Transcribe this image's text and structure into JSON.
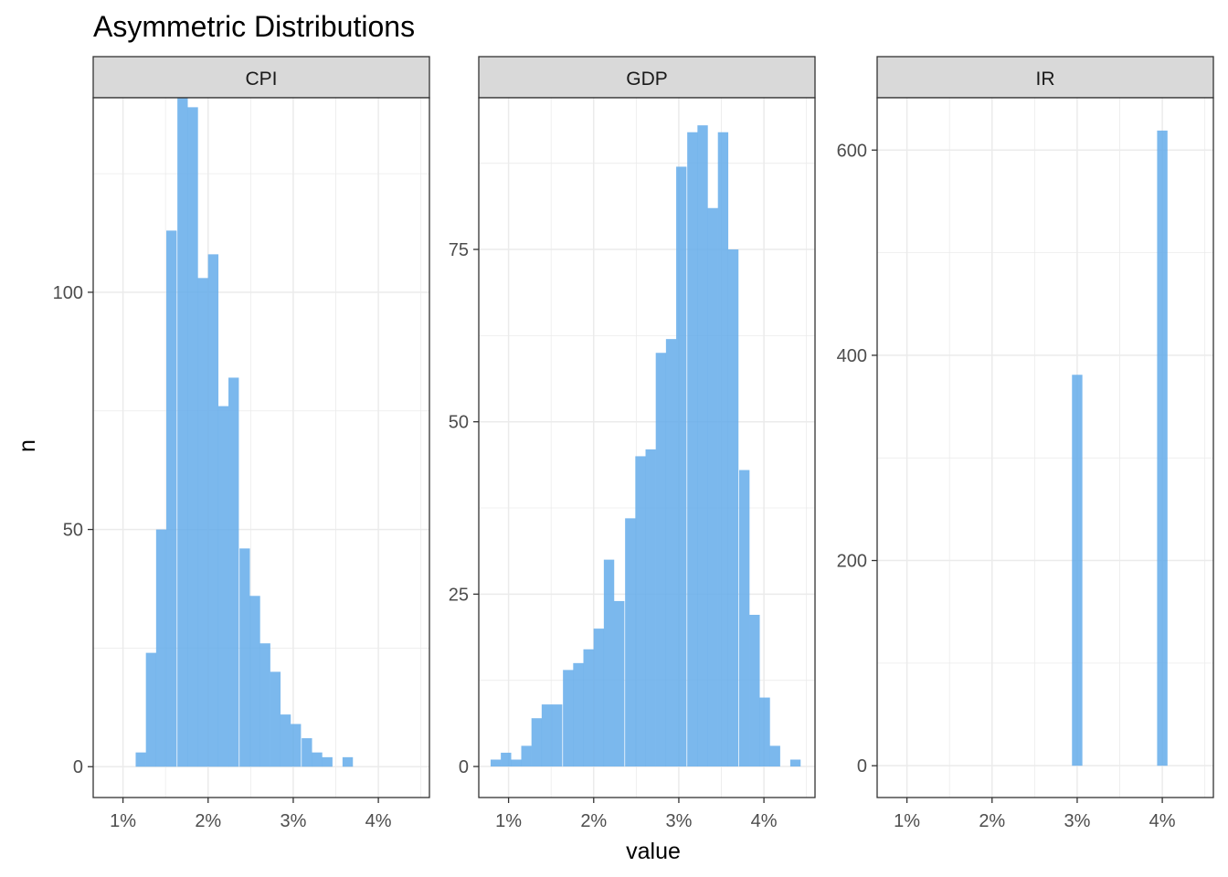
{
  "chart_data": {
    "type": "bar",
    "title": "Asymmetric Distributions",
    "xlabel": "value",
    "ylabel": "n",
    "bar_color": "#64ACEA",
    "grid": true,
    "facets": [
      {
        "label": "CPI",
        "xlim": [
          0.65,
          4.6
        ],
        "ylim": [
          -6.5,
          141
        ],
        "x_ticks": [
          1,
          2,
          3,
          4
        ],
        "x_tick_labels": [
          "1%",
          "2%",
          "3%",
          "4%"
        ],
        "y_ticks": [
          0,
          50,
          100
        ],
        "y_tick_labels": [
          "0",
          "50",
          "100"
        ],
        "bin_width": 0.122,
        "bars": [
          {
            "x": 1.21,
            "n": 3
          },
          {
            "x": 1.33,
            "n": 24
          },
          {
            "x": 1.45,
            "n": 50
          },
          {
            "x": 1.57,
            "n": 113
          },
          {
            "x": 1.7,
            "n": 141
          },
          {
            "x": 1.82,
            "n": 139
          },
          {
            "x": 1.94,
            "n": 103
          },
          {
            "x": 2.06,
            "n": 108
          },
          {
            "x": 2.18,
            "n": 76
          },
          {
            "x": 2.3,
            "n": 82
          },
          {
            "x": 2.43,
            "n": 46
          },
          {
            "x": 2.55,
            "n": 36
          },
          {
            "x": 2.67,
            "n": 26
          },
          {
            "x": 2.79,
            "n": 20
          },
          {
            "x": 2.91,
            "n": 11
          },
          {
            "x": 3.03,
            "n": 9
          },
          {
            "x": 3.16,
            "n": 6
          },
          {
            "x": 3.28,
            "n": 3
          },
          {
            "x": 3.4,
            "n": 2
          },
          {
            "x": 3.64,
            "n": 2
          }
        ]
      },
      {
        "label": "GDP",
        "xlim": [
          0.65,
          4.6
        ],
        "ylim": [
          -4.5,
          97
        ],
        "x_ticks": [
          1,
          2,
          3,
          4
        ],
        "x_tick_labels": [
          "1%",
          "2%",
          "3%",
          "4%"
        ],
        "y_ticks": [
          0,
          25,
          50,
          75
        ],
        "y_tick_labels": [
          "0",
          "25",
          "50",
          "75"
        ],
        "bin_width": 0.122,
        "bars": [
          {
            "x": 0.85,
            "n": 1
          },
          {
            "x": 0.97,
            "n": 2
          },
          {
            "x": 1.09,
            "n": 1
          },
          {
            "x": 1.21,
            "n": 3
          },
          {
            "x": 1.33,
            "n": 7
          },
          {
            "x": 1.45,
            "n": 9
          },
          {
            "x": 1.57,
            "n": 9
          },
          {
            "x": 1.7,
            "n": 14
          },
          {
            "x": 1.82,
            "n": 15
          },
          {
            "x": 1.94,
            "n": 17
          },
          {
            "x": 2.06,
            "n": 20
          },
          {
            "x": 2.18,
            "n": 30
          },
          {
            "x": 2.3,
            "n": 24
          },
          {
            "x": 2.43,
            "n": 36
          },
          {
            "x": 2.55,
            "n": 45
          },
          {
            "x": 2.67,
            "n": 46
          },
          {
            "x": 2.79,
            "n": 60
          },
          {
            "x": 2.91,
            "n": 62
          },
          {
            "x": 3.03,
            "n": 87
          },
          {
            "x": 3.16,
            "n": 92
          },
          {
            "x": 3.28,
            "n": 93
          },
          {
            "x": 3.4,
            "n": 81
          },
          {
            "x": 3.52,
            "n": 92
          },
          {
            "x": 3.64,
            "n": 75
          },
          {
            "x": 3.77,
            "n": 43
          },
          {
            "x": 3.89,
            "n": 22
          },
          {
            "x": 4.01,
            "n": 10
          },
          {
            "x": 4.13,
            "n": 3
          },
          {
            "x": 4.37,
            "n": 1
          }
        ]
      },
      {
        "label": "IR",
        "xlim": [
          0.65,
          4.6
        ],
        "ylim": [
          -31,
          651
        ],
        "x_ticks": [
          1,
          2,
          3,
          4
        ],
        "x_tick_labels": [
          "1%",
          "2%",
          "3%",
          "4%"
        ],
        "y_ticks": [
          0,
          200,
          400,
          600
        ],
        "y_tick_labels": [
          "0",
          "200",
          "400",
          "600"
        ],
        "bin_width": 0.122,
        "bars": [
          {
            "x": 3.0,
            "n": 381
          },
          {
            "x": 4.0,
            "n": 619
          }
        ]
      }
    ]
  }
}
